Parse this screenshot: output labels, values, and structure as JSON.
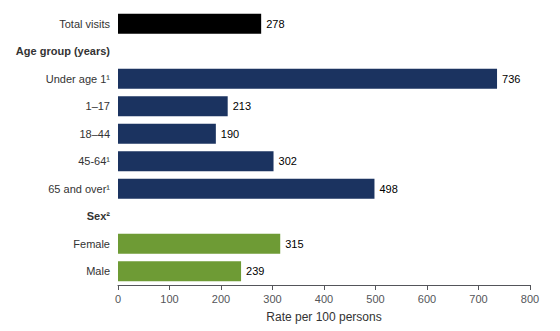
{
  "chart_data": {
    "type": "bar",
    "orientation": "horizontal",
    "categories": [
      "Total visits",
      "Age group (years)",
      "Under age 1¹",
      "1–17",
      "18–44",
      "45-64¹",
      "65 and over¹",
      "Sex²",
      "Female",
      "Male"
    ],
    "values": [
      278,
      null,
      736,
      213,
      190,
      302,
      498,
      null,
      315,
      239
    ],
    "colors": [
      "#000000",
      null,
      "#1b3360",
      "#1b3360",
      "#1b3360",
      "#1b3360",
      "#1b3360",
      null,
      "#6e9b35",
      "#6e9b35"
    ],
    "xlabel": "Rate per 100 persons",
    "xlim": [
      0,
      800
    ],
    "xticks": [
      0,
      100,
      200,
      300,
      400,
      500,
      600,
      700,
      800
    ],
    "data_labels": true,
    "grid": false
  }
}
